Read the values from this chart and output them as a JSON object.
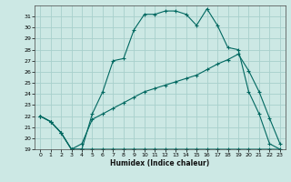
{
  "xlabel": "Humidex (Indice chaleur)",
  "bg_color": "#cce8e4",
  "grid_color": "#a8d0cc",
  "line_color": "#006860",
  "xlim": [
    -0.5,
    23.5
  ],
  "ylim": [
    19,
    32
  ],
  "yticks": [
    19,
    20,
    21,
    22,
    23,
    24,
    25,
    26,
    27,
    28,
    29,
    30,
    31
  ],
  "xticks": [
    0,
    1,
    2,
    3,
    4,
    5,
    6,
    7,
    8,
    9,
    10,
    11,
    12,
    13,
    14,
    15,
    16,
    17,
    18,
    19,
    20,
    21,
    22,
    23
  ],
  "line1_x": [
    0,
    1,
    2,
    3,
    4,
    5,
    6,
    7,
    8,
    9,
    10,
    11,
    12,
    13,
    14,
    15,
    16,
    17,
    18,
    19,
    20,
    21,
    22,
    23
  ],
  "line1_y": [
    22,
    21.5,
    20.5,
    19,
    19,
    19,
    19,
    19,
    19,
    19,
    19,
    19,
    19,
    19,
    19,
    19,
    19,
    19,
    19,
    19,
    19,
    19,
    19,
    19
  ],
  "line2_x": [
    0,
    1,
    2,
    3,
    4,
    5,
    6,
    7,
    8,
    9,
    10,
    11,
    12,
    13,
    14,
    15,
    16,
    17,
    18,
    19,
    20,
    21,
    22,
    23
  ],
  "line2_y": [
    22,
    21.5,
    20.5,
    19.0,
    19.5,
    21.7,
    22.2,
    22.7,
    23.2,
    23.7,
    24.2,
    24.5,
    24.8,
    25.1,
    25.4,
    25.7,
    26.2,
    26.7,
    27.1,
    27.6,
    26.1,
    24.2,
    21.8,
    19.5
  ],
  "line3_x": [
    0,
    1,
    2,
    3,
    4,
    5,
    6,
    7,
    8,
    9,
    10,
    11,
    12,
    13,
    14,
    15,
    16,
    17,
    18,
    19,
    20,
    21,
    22,
    23
  ],
  "line3_y": [
    22,
    21.5,
    20.5,
    19.0,
    19.0,
    22.2,
    24.2,
    27.0,
    27.2,
    29.8,
    31.2,
    31.2,
    31.5,
    31.5,
    31.2,
    30.2,
    31.7,
    30.2,
    28.2,
    28.0,
    24.2,
    22.2,
    19.5,
    19.0
  ]
}
